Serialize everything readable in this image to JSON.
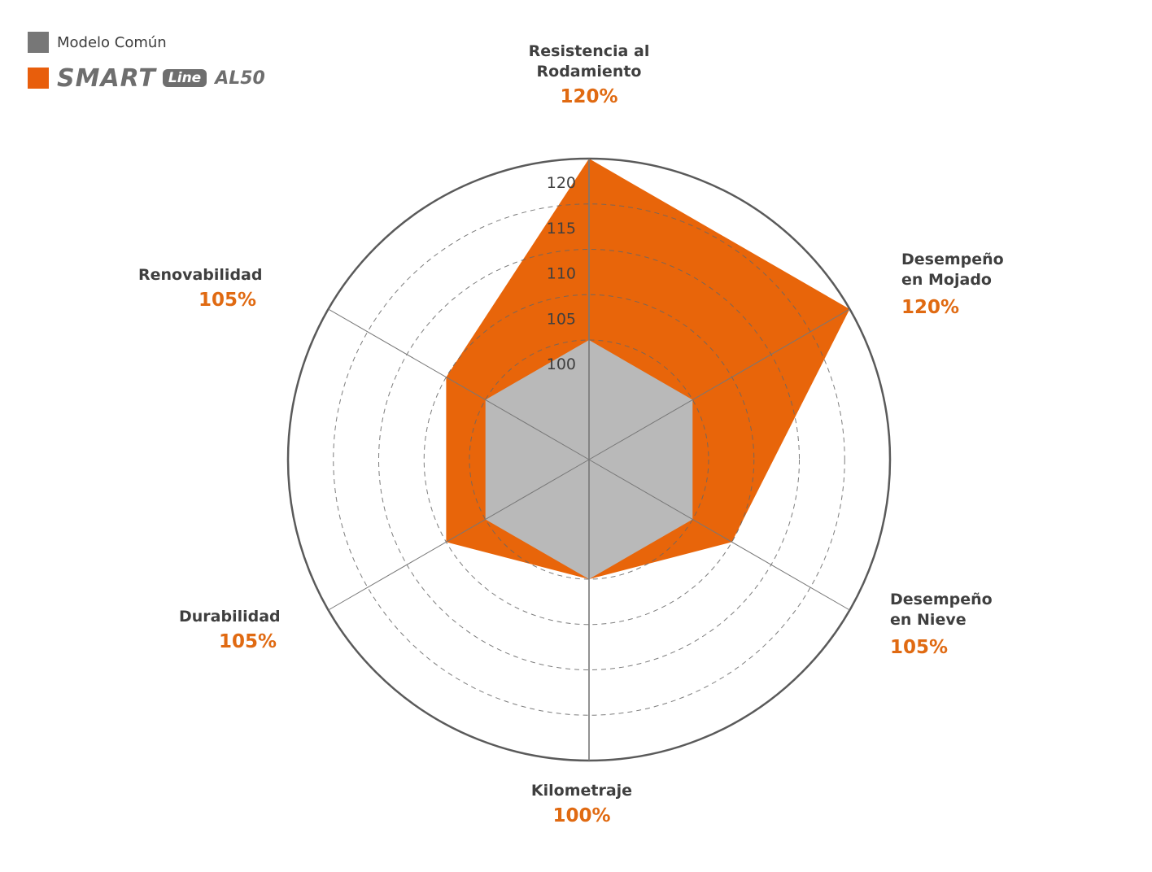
{
  "legend": {
    "items": [
      {
        "label": "Modelo Común",
        "color": "#777777"
      },
      {
        "brand_main": "SMART",
        "brand_sub": "Line",
        "brand_model": "AL50",
        "color": "#e85e0c"
      }
    ]
  },
  "axes": [
    {
      "name": "Resistencia al Rodamiento",
      "line1": "Resistencia al",
      "line2": "Rodamiento",
      "value_label": "120%"
    },
    {
      "name": "Desempeño en Mojado",
      "line1": "Desempeño",
      "line2": "en Mojado",
      "value_label": "120%"
    },
    {
      "name": "Desempeño en Nieve",
      "line1": "Desempeño",
      "line2": "en Nieve",
      "value_label": "105%"
    },
    {
      "name": "Kilometraje",
      "line1": "Kilometraje",
      "line2": "",
      "value_label": "100%"
    },
    {
      "name": "Durabilidad",
      "line1": "Durabilidad",
      "line2": "",
      "value_label": "105%"
    },
    {
      "name": "Renovabilidad",
      "line1": "Renovabilidad",
      "line2": "",
      "value_label": "105%"
    }
  ],
  "ticks": [
    "100",
    "105",
    "110",
    "115",
    "120"
  ],
  "colors": {
    "accent": "#e8650a",
    "base": "#b9b9b9",
    "text": "#3f3f3f",
    "value_text": "#e06a12"
  },
  "chart_data": {
    "type": "radar",
    "title": "",
    "categories": [
      "Resistencia al Rodamiento",
      "Desempeño en Mojado",
      "Desempeño en Nieve",
      "Kilometraje",
      "Durabilidad",
      "Renovabilidad"
    ],
    "series": [
      {
        "name": "Modelo Común",
        "values": [
          100,
          100,
          100,
          100,
          100,
          100
        ],
        "color": "#b9b9b9"
      },
      {
        "name": "SMART Line AL50",
        "values": [
          120,
          120,
          105,
          100,
          105,
          105
        ],
        "color": "#e8650a"
      }
    ],
    "rlim": [
      87,
      120
    ],
    "rticks": [
      100,
      105,
      110,
      115,
      120
    ],
    "grid": "dashed circles",
    "legend_position": "top-left"
  }
}
